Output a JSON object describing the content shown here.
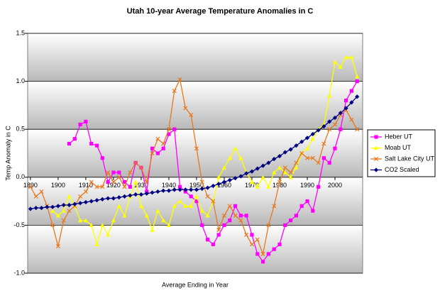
{
  "chart_data": {
    "type": "line",
    "title": "Utah 10-year Average Temperature Anomalies in C",
    "x_label": "Average Ending in Year",
    "y_label": "Temp Anomaly in C",
    "x": [
      1890,
      1892,
      1894,
      1896,
      1898,
      1900,
      1902,
      1904,
      1906,
      1908,
      1910,
      1912,
      1914,
      1916,
      1918,
      1920,
      1922,
      1924,
      1926,
      1928,
      1930,
      1932,
      1934,
      1936,
      1938,
      1940,
      1942,
      1944,
      1946,
      1948,
      1950,
      1952,
      1954,
      1956,
      1958,
      1960,
      1962,
      1964,
      1966,
      1968,
      1970,
      1972,
      1974,
      1976,
      1978,
      1980,
      1982,
      1984,
      1986,
      1988,
      1990,
      1992,
      1994,
      1996,
      1998,
      2000,
      2002,
      2004,
      2006,
      2008
    ],
    "xlim": [
      1889,
      2010
    ],
    "xticks": [
      1890,
      1900,
      1910,
      1920,
      1930,
      1940,
      1950,
      1960,
      1970,
      1980,
      1990,
      2000
    ],
    "ylim": [
      -1,
      1.5
    ],
    "yticks": [
      {
        "value": -1,
        "label": "-1.0"
      },
      -0.5,
      {
        "value": 0,
        "label": "0.0"
      },
      0.5,
      {
        "value": 1,
        "label": "1.0"
      },
      1.5
    ],
    "grid": true,
    "legend": "right",
    "series": [
      {
        "name": "Heber UT",
        "color": "#ff00ff",
        "marker": "square",
        "values": [
          null,
          null,
          null,
          null,
          null,
          null,
          null,
          0.35,
          0.4,
          0.55,
          0.58,
          0.35,
          0.33,
          0.2,
          -0.05,
          0.05,
          0.05,
          -0.05,
          -0.1,
          0.15,
          0.1,
          -0.15,
          0.3,
          0.25,
          0.3,
          0.45,
          0.5,
          -0.1,
          -0.15,
          -0.2,
          -0.25,
          -0.5,
          -0.65,
          -0.7,
          -0.6,
          -0.5,
          -0.45,
          -0.3,
          -0.4,
          -0.4,
          -0.6,
          -0.8,
          -0.88,
          -0.8,
          -0.75,
          -0.7,
          -0.5,
          -0.45,
          -0.4,
          -0.3,
          -0.25,
          -0.35,
          -0.1,
          0.2,
          0.15,
          0.3,
          0.5,
          0.8,
          0.9,
          1.0
        ]
      },
      {
        "name": "Moab UT",
        "color": "#ffff00",
        "marker": "triangle",
        "values": [
          null,
          null,
          null,
          null,
          -0.35,
          -0.4,
          -0.35,
          -0.2,
          -0.3,
          -0.45,
          -0.45,
          -0.5,
          -0.7,
          -0.5,
          -0.6,
          -0.45,
          -0.3,
          -0.4,
          -0.2,
          -0.05,
          -0.3,
          -0.4,
          -0.55,
          -0.35,
          -0.45,
          -0.5,
          -0.3,
          -0.25,
          -0.3,
          -0.3,
          -0.2,
          -0.35,
          -0.4,
          -0.25,
          0.0,
          0.1,
          0.2,
          0.3,
          0.2,
          0.05,
          -0.05,
          -0.1,
          0.0,
          -0.1,
          0.05,
          0.1,
          0.05,
          0.0,
          0.1,
          0.25,
          0.3,
          0.4,
          0.5,
          0.55,
          0.85,
          1.2,
          1.15,
          1.25,
          1.25,
          1.05
        ]
      },
      {
        "name": "Salt Lake City UT",
        "color": "#e8781e",
        "marker": "cross",
        "values": [
          -0.1,
          -0.2,
          -0.15,
          -0.3,
          -0.5,
          -0.72,
          -0.45,
          -0.35,
          -0.3,
          -0.2,
          -0.15,
          -0.05,
          -0.1,
          -0.1,
          0.05,
          -0.05,
          0.0,
          -0.1,
          0.05,
          0.15,
          0.1,
          -0.05,
          0.25,
          0.4,
          0.35,
          0.5,
          0.9,
          1.02,
          0.72,
          0.65,
          0.3,
          -0.05,
          -0.2,
          -0.25,
          -0.55,
          -0.4,
          -0.3,
          -0.4,
          -0.45,
          -0.6,
          -0.7,
          -0.65,
          -0.8,
          -0.5,
          -0.3,
          -0.05,
          0.1,
          0.05,
          0.15,
          0.25,
          0.2,
          0.2,
          0.15,
          0.35,
          0.5,
          0.55,
          0.65,
          0.7,
          0.6,
          0.5
        ]
      },
      {
        "name": "CO2 Scaled",
        "color": "#000080",
        "marker": "diamond",
        "values": [
          -0.33,
          -0.32,
          -0.32,
          -0.31,
          -0.31,
          -0.3,
          -0.29,
          -0.29,
          -0.28,
          -0.27,
          -0.26,
          -0.25,
          -0.24,
          -0.23,
          -0.22,
          -0.22,
          -0.21,
          -0.2,
          -0.19,
          -0.18,
          -0.18,
          -0.17,
          -0.16,
          -0.15,
          -0.14,
          -0.14,
          -0.13,
          -0.13,
          -0.13,
          -0.13,
          -0.13,
          -0.12,
          -0.11,
          -0.09,
          -0.07,
          -0.05,
          -0.03,
          -0.01,
          0.01,
          0.04,
          0.06,
          0.09,
          0.12,
          0.15,
          0.19,
          0.22,
          0.26,
          0.29,
          0.33,
          0.37,
          0.41,
          0.45,
          0.49,
          0.53,
          0.58,
          0.62,
          0.67,
          0.72,
          0.78,
          0.84
        ]
      }
    ]
  }
}
